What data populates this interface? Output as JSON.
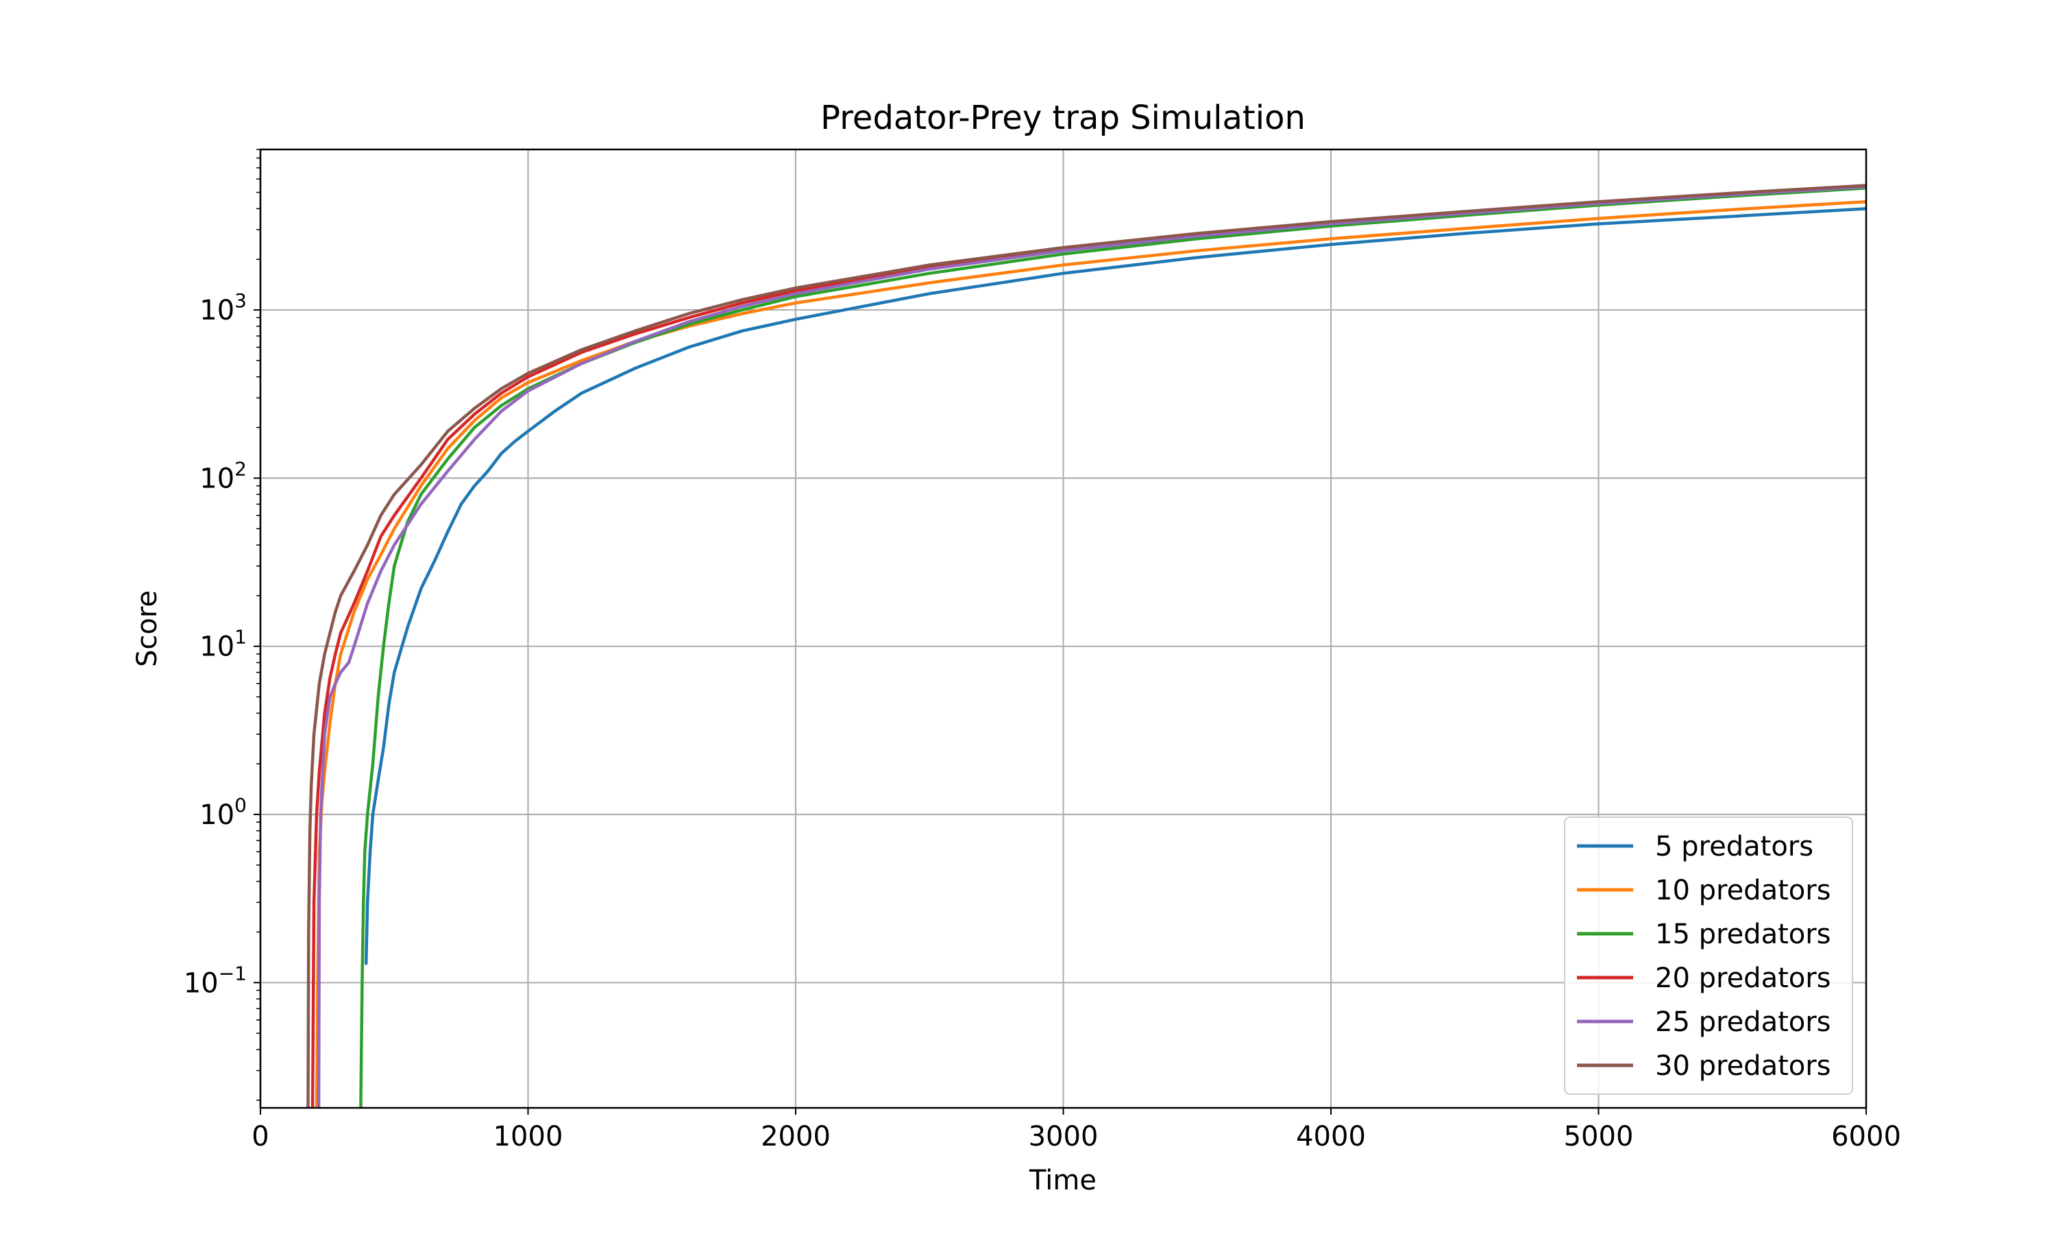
{
  "chart_data": {
    "type": "line",
    "title": "Predator-Prey trap Simulation",
    "xlabel": "Time",
    "ylabel": "Score",
    "xlim": [
      0,
      6000
    ],
    "ylim": [
      0.018,
      9000
    ],
    "yscale": "log",
    "grid": true,
    "legend_position": "lower right",
    "x_ticks": [
      0,
      1000,
      2000,
      3000,
      4000,
      5000,
      6000
    ],
    "x_tick_labels": [
      "0",
      "1000",
      "2000",
      "3000",
      "4000",
      "5000",
      "6000"
    ],
    "y_ticks": [
      0.1,
      1,
      10,
      100,
      1000
    ],
    "y_tick_labels": [
      {
        "base": "10",
        "exp": "−1"
      },
      {
        "base": "10",
        "exp": "0"
      },
      {
        "base": "10",
        "exp": "1"
      },
      {
        "base": "10",
        "exp": "2"
      },
      {
        "base": "10",
        "exp": "3"
      }
    ],
    "series": [
      {
        "name": "5 predators",
        "color": "#1f77b4",
        "x": [
          395,
          400,
          410,
          420,
          440,
          460,
          480,
          500,
          550,
          600,
          650,
          700,
          750,
          800,
          850,
          900,
          950,
          1000,
          1100,
          1200,
          1400,
          1600,
          1800,
          2000,
          2500,
          3000,
          3500,
          4000,
          4500,
          5000,
          5500,
          6000
        ],
        "y": [
          0.13,
          0.3,
          0.6,
          1.0,
          1.6,
          2.5,
          4.5,
          7,
          13,
          22,
          32,
          48,
          70,
          90,
          110,
          140,
          165,
          190,
          250,
          320,
          450,
          600,
          750,
          880,
          1250,
          1650,
          2050,
          2450,
          2850,
          3250,
          3600,
          4000
        ]
      },
      {
        "name": "10 predators",
        "color": "#ff7f0e",
        "x": [
          210,
          215,
          220,
          230,
          240,
          260,
          280,
          300,
          350,
          400,
          450,
          500,
          600,
          700,
          800,
          900,
          1000,
          1200,
          1400,
          1600,
          1800,
          2000,
          2500,
          3000,
          3500,
          4000,
          4500,
          5000,
          5500,
          6000
        ],
        "y": [
          0.018,
          0.15,
          0.6,
          1.2,
          1.8,
          3.5,
          6,
          9,
          16,
          25,
          35,
          50,
          90,
          150,
          220,
          300,
          370,
          500,
          650,
          800,
          950,
          1100,
          1450,
          1850,
          2250,
          2650,
          3050,
          3500,
          3950,
          4400
        ]
      },
      {
        "name": "15 predators",
        "color": "#2ca02c",
        "x": [
          375,
          380,
          385,
          390,
          400,
          420,
          440,
          460,
          480,
          500,
          550,
          600,
          700,
          800,
          900,
          1000,
          1200,
          1400,
          1600,
          1800,
          2000,
          2500,
          3000,
          3500,
          4000,
          4500,
          5000,
          5500,
          6000
        ],
        "y": [
          0.018,
          0.1,
          0.3,
          0.6,
          1.0,
          2.0,
          5,
          10,
          18,
          30,
          55,
          80,
          130,
          200,
          270,
          340,
          480,
          640,
          820,
          1000,
          1200,
          1650,
          2150,
          2650,
          3150,
          3650,
          4200,
          4750,
          5300
        ]
      },
      {
        "name": "20 predators",
        "color": "#d62728",
        "x": [
          195,
          200,
          210,
          220,
          240,
          260,
          280,
          300,
          350,
          400,
          450,
          500,
          600,
          700,
          800,
          900,
          1000,
          1200,
          1400,
          1600,
          1800,
          2000,
          2500,
          3000,
          3500,
          4000,
          4500,
          5000,
          5500,
          6000
        ],
        "y": [
          0.018,
          0.3,
          1.0,
          1.8,
          4,
          6.5,
          9,
          12,
          18,
          28,
          45,
          60,
          100,
          170,
          240,
          320,
          400,
          560,
          720,
          900,
          1100,
          1300,
          1800,
          2300,
          2800,
          3300,
          3800,
          4350,
          4900,
          5450
        ]
      },
      {
        "name": "25 predators",
        "color": "#9467bd",
        "x": [
          218,
          220,
          225,
          230,
          240,
          260,
          280,
          300,
          330,
          350,
          400,
          450,
          500,
          600,
          700,
          800,
          900,
          1000,
          1200,
          1400,
          1600,
          1800,
          2000,
          2500,
          3000,
          3500,
          4000,
          4500,
          5000,
          5500,
          6000
        ],
        "y": [
          0.018,
          0.3,
          1.0,
          1.5,
          3.0,
          5,
          6,
          7,
          8,
          10,
          18,
          28,
          40,
          70,
          110,
          170,
          250,
          330,
          480,
          650,
          850,
          1050,
          1250,
          1750,
          2250,
          2750,
          3250,
          3750,
          4300,
          4850,
          5400
        ]
      },
      {
        "name": "30 predators",
        "color": "#8c564b",
        "x": [
          178,
          180,
          185,
          190,
          200,
          220,
          240,
          260,
          280,
          300,
          350,
          400,
          450,
          500,
          600,
          700,
          800,
          900,
          1000,
          1200,
          1400,
          1600,
          1800,
          2000,
          2500,
          3000,
          3500,
          4000,
          4500,
          5000,
          5500,
          6000
        ],
        "y": [
          0.018,
          0.2,
          0.8,
          1.5,
          3,
          6,
          9,
          12,
          16,
          20,
          28,
          40,
          60,
          80,
          120,
          190,
          260,
          340,
          420,
          580,
          750,
          950,
          1150,
          1350,
          1850,
          2350,
          2850,
          3350,
          3850,
          4400,
          4950,
          5500
        ]
      }
    ]
  }
}
